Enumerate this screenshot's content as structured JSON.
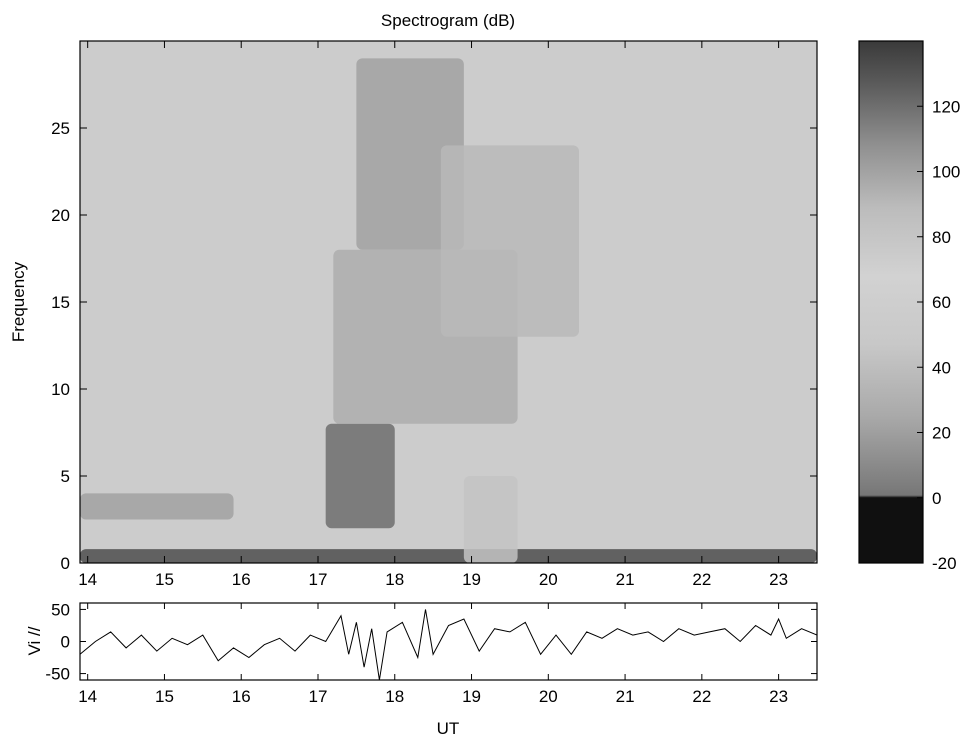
{
  "chart_data": [
    {
      "type": "heatmap",
      "title": "Spectrogram (dB)",
      "xlabel": "",
      "ylabel": "Frequency",
      "xlim": [
        13.9,
        23.5
      ],
      "ylim": [
        0,
        30
      ],
      "xticks": [
        14,
        15,
        16,
        17,
        18,
        19,
        20,
        21,
        22,
        23
      ],
      "yticks": [
        0,
        5,
        10,
        15,
        20,
        25
      ],
      "colormap": "grayscale (dark = high, light ≈ 60–80, black below 0)",
      "colorbar": {
        "range": [
          -20,
          140
        ],
        "ticks": [
          -20,
          0,
          20,
          40,
          60,
          80,
          100,
          120
        ]
      },
      "features": [
        {
          "x": [
            13.9,
            23.5
          ],
          "y": [
            0,
            0.8
          ],
          "db": 130
        },
        {
          "x": [
            17.1,
            18.0
          ],
          "y": [
            2,
            8
          ],
          "db": 115
        },
        {
          "x": [
            13.9,
            15.9
          ],
          "y": [
            2.5,
            4
          ],
          "db": 95
        },
        {
          "x": [
            17.5,
            18.9
          ],
          "y": [
            18,
            29
          ],
          "db": 95
        },
        {
          "x": [
            17.2,
            19.6
          ],
          "y": [
            8,
            18
          ],
          "db": 90
        },
        {
          "x": [
            18.6,
            20.4
          ],
          "y": [
            13,
            24
          ],
          "db": 85
        },
        {
          "x": [
            18.9,
            19.6
          ],
          "y": [
            0,
            5
          ],
          "db": 80
        }
      ],
      "grid": false,
      "legend": "colorbar on right"
    },
    {
      "type": "line",
      "xlabel": "UT",
      "ylabel": "Vi //",
      "xlim": [
        13.9,
        23.5
      ],
      "ylim": [
        -60,
        60
      ],
      "xticks": [
        14,
        15,
        16,
        17,
        18,
        19,
        20,
        21,
        22,
        23
      ],
      "yticks": [
        -50,
        0,
        50
      ],
      "series": [
        {
          "x": [
            13.9,
            14.1,
            14.3,
            14.5,
            14.7,
            14.9,
            15.1,
            15.3,
            15.5,
            15.7,
            15.9,
            16.1,
            16.3,
            16.5,
            16.7,
            16.9,
            17.1,
            17.3,
            17.4,
            17.5,
            17.6,
            17.7,
            17.8,
            17.9,
            18.1,
            18.3,
            18.4,
            18.5,
            18.7,
            18.9,
            19.1,
            19.3,
            19.5,
            19.7,
            19.9,
            20.1,
            20.3,
            20.5,
            20.7,
            20.9,
            21.1,
            21.3,
            21.5,
            21.7,
            21.9,
            22.1,
            22.3,
            22.5,
            22.7,
            22.9,
            23.0,
            23.1,
            23.3,
            23.5
          ],
          "y": [
            -20,
            0,
            15,
            -10,
            10,
            -15,
            5,
            -5,
            10,
            -30,
            -10,
            -25,
            -5,
            5,
            -15,
            10,
            0,
            40,
            -20,
            30,
            -40,
            20,
            -60,
            15,
            30,
            -25,
            50,
            -20,
            25,
            35,
            -15,
            20,
            15,
            30,
            -20,
            10,
            -20,
            15,
            5,
            20,
            10,
            15,
            0,
            20,
            10,
            15,
            20,
            0,
            25,
            10,
            35,
            5,
            20,
            10
          ]
        }
      ],
      "grid": false
    }
  ]
}
